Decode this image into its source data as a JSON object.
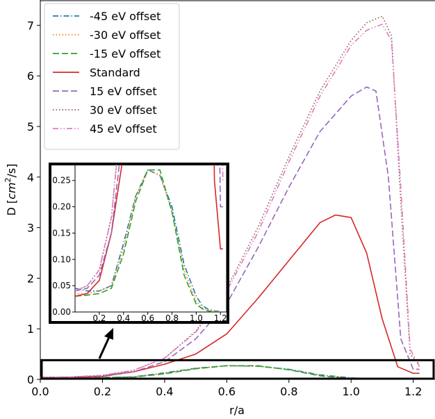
{
  "chart_data": {
    "type": "line",
    "xlabel": "r/a",
    "ylabel": "D [cm²/s]",
    "ylabel_parts": {
      "prefix": "D [",
      "cm": "cm",
      "sup": "2",
      "suffix": "/s]"
    },
    "xlim": [
      0.0,
      1.27
    ],
    "ylim": [
      0.0,
      7.5
    ],
    "xticks": [
      "0.0",
      "0.2",
      "0.4",
      "0.6",
      "0.8",
      "1.0",
      "1.2"
    ],
    "yticks": [
      "0",
      "1",
      "2",
      "3",
      "4",
      "5",
      "6",
      "7"
    ],
    "legend_position": "top-left",
    "series": [
      {
        "name": "-45 eV offset",
        "color": "#1f77b4",
        "style": "dashdot",
        "x": [
          0.0,
          0.1,
          0.2,
          0.3,
          0.4,
          0.5,
          0.6,
          0.7,
          0.8,
          0.9,
          1.0,
          1.05,
          1.1,
          1.15,
          1.2
        ],
        "y": [
          0.045,
          0.04,
          0.04,
          0.05,
          0.13,
          0.22,
          0.27,
          0.26,
          0.2,
          0.09,
          0.03,
          0.012,
          0.005,
          0.002,
          0.001
        ]
      },
      {
        "name": "-30 eV offset",
        "color": "#ff7f0e",
        "style": "dotted",
        "x": [
          0.0,
          0.1,
          0.2,
          0.3,
          0.4,
          0.5,
          0.6,
          0.7,
          0.8,
          0.9,
          1.0,
          1.05,
          1.1,
          1.15,
          1.2
        ],
        "y": [
          0.035,
          0.035,
          0.04,
          0.05,
          0.12,
          0.22,
          0.27,
          0.26,
          0.19,
          0.08,
          0.02,
          0.008,
          0.003,
          0.001,
          0.0
        ]
      },
      {
        "name": "-15 eV offset",
        "color": "#2ca02c",
        "style": "dashed",
        "x": [
          0.0,
          0.1,
          0.2,
          0.3,
          0.4,
          0.5,
          0.6,
          0.7,
          0.8,
          0.9,
          1.0,
          1.05,
          1.1,
          1.15,
          1.2
        ],
        "y": [
          0.03,
          0.032,
          0.035,
          0.045,
          0.11,
          0.21,
          0.27,
          0.27,
          0.19,
          0.07,
          0.015,
          0.006,
          0.002,
          0.0,
          0.0
        ]
      },
      {
        "name": "Standard",
        "color": "#d62728",
        "style": "solid",
        "x": [
          0.0,
          0.1,
          0.2,
          0.3,
          0.4,
          0.5,
          0.6,
          0.7,
          0.8,
          0.9,
          0.95,
          1.0,
          1.05,
          1.1,
          1.15,
          1.2,
          1.22
        ],
        "y": [
          0.03,
          0.035,
          0.06,
          0.15,
          0.3,
          0.5,
          0.9,
          1.6,
          2.35,
          3.1,
          3.25,
          3.2,
          2.5,
          1.2,
          0.25,
          0.12,
          0.12
        ]
      },
      {
        "name": "15 eV offset",
        "color": "#9467bd",
        "style": "dashed",
        "x": [
          0.0,
          0.1,
          0.2,
          0.3,
          0.4,
          0.5,
          0.6,
          0.7,
          0.8,
          0.9,
          1.0,
          1.05,
          1.08,
          1.12,
          1.16,
          1.2,
          1.22
        ],
        "y": [
          0.04,
          0.045,
          0.07,
          0.15,
          0.35,
          0.8,
          1.5,
          2.6,
          3.8,
          4.9,
          5.6,
          5.78,
          5.7,
          4.0,
          0.8,
          0.2,
          0.2
        ]
      },
      {
        "name": "30 eV offset",
        "color": "#8c564b",
        "style": "dotted",
        "x": [
          0.0,
          0.1,
          0.2,
          0.3,
          0.4,
          0.5,
          0.6,
          0.7,
          0.8,
          0.9,
          1.0,
          1.05,
          1.1,
          1.13,
          1.16,
          1.19,
          1.22
        ],
        "y": [
          0.04,
          0.05,
          0.08,
          0.18,
          0.42,
          0.95,
          1.8,
          3.0,
          4.4,
          5.7,
          6.7,
          7.05,
          7.18,
          6.8,
          3.5,
          0.5,
          0.3
        ]
      },
      {
        "name": "45 eV offset",
        "color": "#e377c2",
        "style": "dashdotdot",
        "x": [
          0.0,
          0.1,
          0.2,
          0.3,
          0.4,
          0.5,
          0.6,
          0.7,
          0.8,
          0.9,
          1.0,
          1.05,
          1.1,
          1.13,
          1.16,
          1.19,
          1.22
        ],
        "y": [
          0.04,
          0.05,
          0.08,
          0.18,
          0.42,
          0.93,
          1.75,
          2.9,
          4.3,
          5.6,
          6.6,
          6.9,
          7.02,
          6.7,
          3.8,
          0.6,
          0.25
        ]
      }
    ],
    "inset": {
      "xlim": [
        0.0,
        1.25
      ],
      "ylim": [
        0.0,
        0.28
      ],
      "xticks": [
        "0.2",
        "0.4",
        "0.6",
        "0.8",
        "1.0",
        "1.2"
      ],
      "yticks": [
        "0.00",
        "0.05",
        "0.10",
        "0.15",
        "0.20",
        "0.25"
      ],
      "zoom_region": {
        "x": [
          0.0,
          1.27
        ],
        "y": [
          0.0,
          0.38
        ]
      }
    }
  }
}
